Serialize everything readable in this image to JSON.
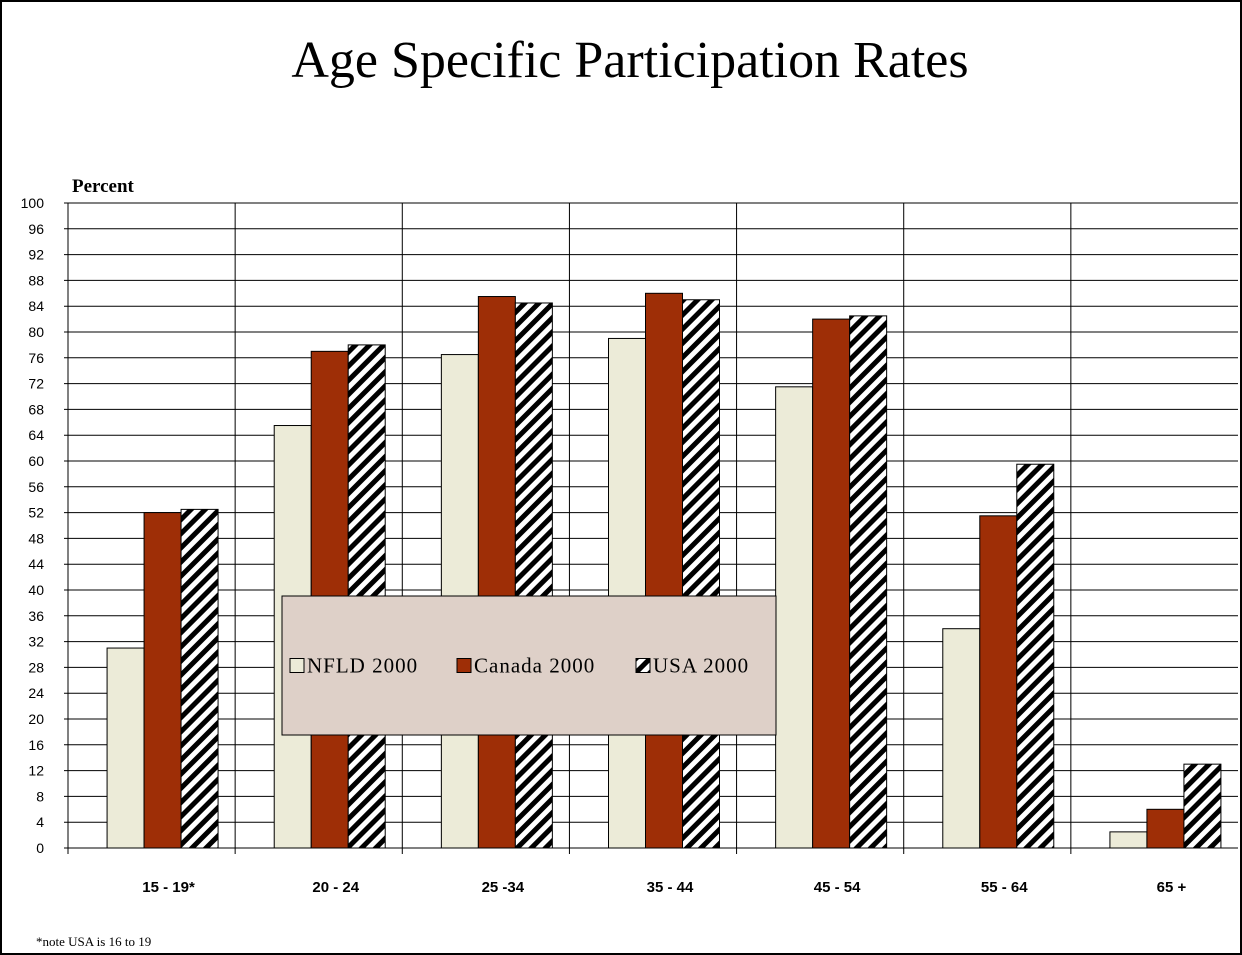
{
  "chart_data": {
    "type": "bar",
    "title": "Age Specific Participation Rates",
    "ylabel": "Percent",
    "xlabel": "",
    "ylim": [
      0,
      100
    ],
    "ytick_step": 4,
    "grid": true,
    "legend_position": "center",
    "categories": [
      "15 - 19*",
      "20 - 24",
      "25 -34",
      "35 - 44",
      "45 - 54",
      "55 - 64",
      "65 +"
    ],
    "series": [
      {
        "name": "NFLD 2000",
        "color": "#ECEBD8",
        "pattern": "solid",
        "values": [
          31,
          65.5,
          76.5,
          79,
          71.5,
          34,
          2.5
        ]
      },
      {
        "name": "Canada 2000",
        "color": "#9E2E06",
        "pattern": "solid",
        "values": [
          52,
          77,
          85.5,
          86,
          82,
          51.5,
          6
        ]
      },
      {
        "name": "USA 2000",
        "color": "#FFFFFF",
        "pattern": "diagonal-hatch",
        "values": [
          52.5,
          78,
          84.5,
          85,
          82.5,
          59.5,
          13
        ]
      }
    ],
    "note": "*note USA is 16 to 19",
    "legend_background": "#DED0C8"
  }
}
